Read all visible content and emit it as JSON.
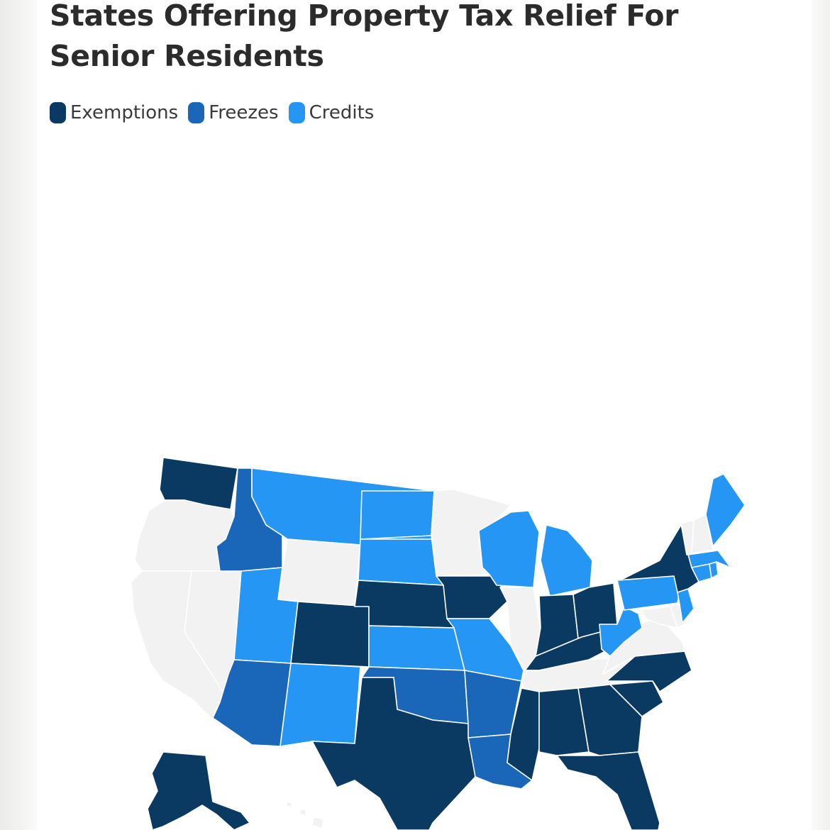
{
  "title": "States Offering Property Tax Relief For Senior Residents",
  "legend": [
    {
      "key": "exemptions",
      "label": "Exemptions",
      "color": "#0a3a61"
    },
    {
      "key": "freezes",
      "label": "Freezes",
      "color": "#1a67b9"
    },
    {
      "key": "credits",
      "label": "Credits",
      "color": "#2596f3"
    }
  ],
  "no_relief_color": "#f2f2f2",
  "states": {
    "WA": "exemptions",
    "OR": "none",
    "CA": "none",
    "NV": "none",
    "ID": "freezes",
    "MT": "credits",
    "WY": "none",
    "UT": "credits",
    "AZ": "freezes",
    "CO": "exemptions",
    "NM": "credits",
    "ND": "credits",
    "SD": "credits",
    "NE": "exemptions",
    "KS": "credits",
    "OK": "freezes",
    "TX": "exemptions",
    "MN": "none",
    "IA": "exemptions",
    "MO": "credits",
    "AR": "freezes",
    "LA": "freezes",
    "WI": "credits",
    "IL": "none",
    "MI": "credits",
    "IN": "exemptions",
    "OH": "exemptions",
    "KY": "exemptions",
    "TN": "none",
    "MS": "exemptions",
    "AL": "exemptions",
    "GA": "exemptions",
    "FL": "exemptions",
    "SC": "exemptions",
    "NC": "exemptions",
    "VA": "none",
    "WV": "credits",
    "MD": "none",
    "DE": "none",
    "PA": "credits",
    "NJ": "credits",
    "NY": "exemptions",
    "CT": "credits",
    "RI": "credits",
    "MA": "credits",
    "VT": "none",
    "NH": "none",
    "ME": "credits",
    "AK": "exemptions",
    "HI": "none"
  }
}
